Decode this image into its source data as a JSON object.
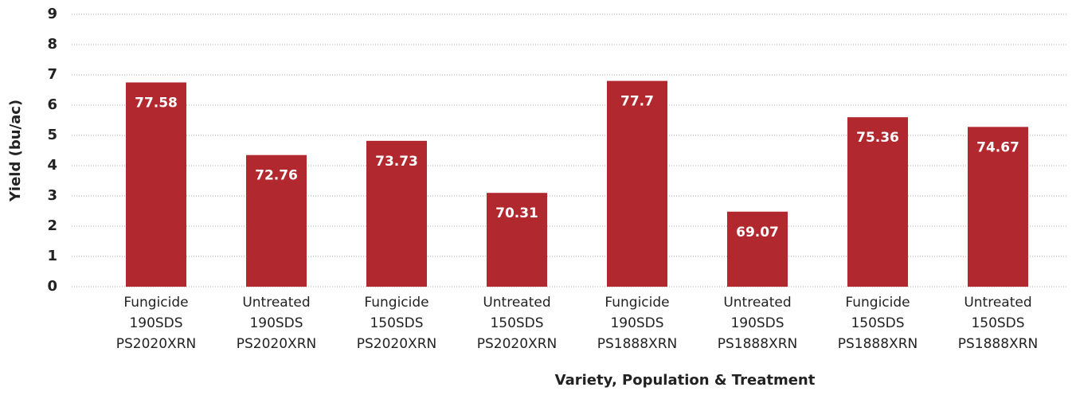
{
  "chart_data": {
    "type": "bar",
    "xlabel": "Variety, Population & Treatment",
    "ylabel": "Yield (bu/ac)",
    "categories": [
      "Fungicide\n190SDS\nPS2020XRN",
      "Untreated\n190SDS\nPS2020XRN",
      "Fungicide\n150SDS\nPS2020XRN",
      "Untreated\n150SDS\nPS2020XRN",
      "Fungicide\n190SDS\nPS1888XRN",
      "Untreated\n190SDS\nPS1888XRN",
      "Fungicide\n150SDS\nPS1888XRN",
      "Untreated\n150SDS\nPS1888XRN"
    ],
    "values": [
      6.75,
      4.35,
      4.82,
      3.1,
      6.8,
      2.48,
      5.6,
      5.28
    ],
    "value_labels": [
      "77.58",
      "72.76",
      "73.73",
      "70.31",
      "77.7",
      "69.07",
      "75.36",
      "74.67"
    ],
    "color": "#b1282e",
    "ylim": [
      0,
      9
    ],
    "yticks": [
      0,
      1,
      2,
      3,
      4,
      5,
      6,
      7,
      8,
      9
    ],
    "grid": true
  }
}
